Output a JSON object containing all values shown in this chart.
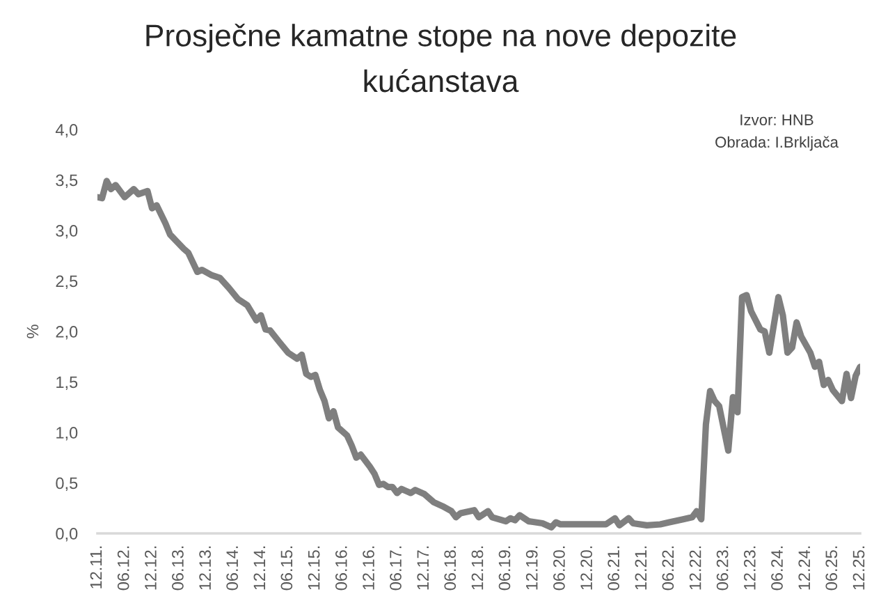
{
  "chart_data": {
    "type": "line",
    "title": "Prosječne kamatne stope na nove depozite\nkućanstava",
    "ylabel": "%",
    "annotations": [
      "Izvor: HNB",
      "Obrada: I.Brkljača"
    ],
    "x": [
      "2011-12",
      "2012-01",
      "2012-02",
      "2012-03",
      "2012-04",
      "2012-06",
      "2012-08",
      "2012-09",
      "2012-11",
      "2012-12",
      "2013-01",
      "2013-03",
      "2013-04",
      "2013-07",
      "2013-08",
      "2013-10",
      "2013-11",
      "2014-01",
      "2014-03",
      "2014-05",
      "2014-07",
      "2014-09",
      "2014-11",
      "2014-12",
      "2015-01",
      "2015-02",
      "2015-04",
      "2015-06",
      "2015-08",
      "2015-09",
      "2015-10",
      "2015-11",
      "2015-12",
      "2016-01",
      "2016-02",
      "2016-03",
      "2016-04",
      "2016-05",
      "2016-07",
      "2016-08",
      "2016-09",
      "2016-10",
      "2016-12",
      "2017-01",
      "2017-02",
      "2017-03",
      "2017-04",
      "2017-05",
      "2017-06",
      "2017-07",
      "2017-08",
      "2017-09",
      "2017-10",
      "2017-12",
      "2018-02",
      "2018-04",
      "2018-06",
      "2018-07",
      "2018-08",
      "2018-11",
      "2018-12",
      "2019-02",
      "2019-03",
      "2019-06",
      "2019-07",
      "2019-08",
      "2019-09",
      "2019-11",
      "2020-02",
      "2020-04",
      "2020-05",
      "2020-06",
      "2020-10",
      "2021-04",
      "2021-06",
      "2021-07",
      "2021-09",
      "2021-10",
      "2022-01",
      "2022-04",
      "2022-06",
      "2022-09",
      "2022-11",
      "2022-12",
      "2023-01",
      "2023-02",
      "2023-03",
      "2023-04",
      "2023-05",
      "2023-07",
      "2023-08",
      "2023-09",
      "2023-10",
      "2023-11",
      "2023-12",
      "2024-02",
      "2024-03",
      "2024-04",
      "2024-06",
      "2024-07",
      "2024-08",
      "2024-09",
      "2024-10",
      "2024-11",
      "2025-01",
      "2025-02",
      "2025-03",
      "2025-04",
      "2025-05",
      "2025-06",
      "2025-08",
      "2025-09",
      "2025-10",
      "2025-11",
      "2025-12"
    ],
    "series": [
      {
        "color": "#7f7f7f",
        "values": [
          3.33,
          3.32,
          3.49,
          3.41,
          3.45,
          3.33,
          3.41,
          3.36,
          3.39,
          3.22,
          3.25,
          3.07,
          2.96,
          2.82,
          2.78,
          2.59,
          2.61,
          2.56,
          2.53,
          2.43,
          2.32,
          2.26,
          2.11,
          2.16,
          2.02,
          2.01,
          1.9,
          1.79,
          1.73,
          1.77,
          1.58,
          1.55,
          1.57,
          1.42,
          1.31,
          1.14,
          1.21,
          1.05,
          0.97,
          0.87,
          0.75,
          0.78,
          0.66,
          0.59,
          0.48,
          0.49,
          0.46,
          0.46,
          0.4,
          0.44,
          0.42,
          0.4,
          0.43,
          0.39,
          0.31,
          0.27,
          0.22,
          0.16,
          0.2,
          0.23,
          0.16,
          0.22,
          0.16,
          0.12,
          0.15,
          0.13,
          0.18,
          0.12,
          0.1,
          0.06,
          0.11,
          0.09,
          0.09,
          0.09,
          0.15,
          0.08,
          0.15,
          0.1,
          0.08,
          0.09,
          0.11,
          0.14,
          0.16,
          0.22,
          0.14,
          1.08,
          1.41,
          1.31,
          1.26,
          0.82,
          1.35,
          1.2,
          2.34,
          2.36,
          2.2,
          2.02,
          2.0,
          1.79,
          2.34,
          2.16,
          1.79,
          1.84,
          2.09,
          1.95,
          1.79,
          1.65,
          1.7,
          1.47,
          1.52,
          1.42,
          1.31,
          1.58,
          1.34,
          1.56,
          1.65
        ]
      }
    ],
    "xlim": [
      "2011-12",
      "2025-12"
    ],
    "xticks": [
      {
        "value": "2011-12",
        "label": "12.11."
      },
      {
        "value": "2012-06",
        "label": "06.12."
      },
      {
        "value": "2012-12",
        "label": "12.12."
      },
      {
        "value": "2013-06",
        "label": "06.13."
      },
      {
        "value": "2013-12",
        "label": "12.13."
      },
      {
        "value": "2014-06",
        "label": "06.14."
      },
      {
        "value": "2014-12",
        "label": "12.14."
      },
      {
        "value": "2015-06",
        "label": "06.15."
      },
      {
        "value": "2015-12",
        "label": "12.15."
      },
      {
        "value": "2016-06",
        "label": "06.16."
      },
      {
        "value": "2016-12",
        "label": "12.16."
      },
      {
        "value": "2017-06",
        "label": "06.17."
      },
      {
        "value": "2017-12",
        "label": "12.17."
      },
      {
        "value": "2018-06",
        "label": "06.18."
      },
      {
        "value": "2018-12",
        "label": "12.18."
      },
      {
        "value": "2019-06",
        "label": "06.19."
      },
      {
        "value": "2019-12",
        "label": "12.19."
      },
      {
        "value": "2020-06",
        "label": "06.20."
      },
      {
        "value": "2020-12",
        "label": "12.20."
      },
      {
        "value": "2021-06",
        "label": "06.21."
      },
      {
        "value": "2021-12",
        "label": "12.21."
      },
      {
        "value": "2022-06",
        "label": "06.22."
      },
      {
        "value": "2022-12",
        "label": "12.22."
      },
      {
        "value": "2023-06",
        "label": "06.23."
      },
      {
        "value": "2023-12",
        "label": "12.23."
      },
      {
        "value": "2024-06",
        "label": "06.24."
      },
      {
        "value": "2024-12",
        "label": "12.24."
      },
      {
        "value": "2025-06",
        "label": "06.25."
      },
      {
        "value": "2025-12",
        "label": "12.25."
      }
    ],
    "ylim": [
      0,
      4
    ],
    "yticks": [
      {
        "value": 0,
        "label": "0,0"
      },
      {
        "value": 0.5,
        "label": "0,5"
      },
      {
        "value": 1,
        "label": "1,0"
      },
      {
        "value": 1.5,
        "label": "1,5"
      },
      {
        "value": 2,
        "label": "2,0"
      },
      {
        "value": 2.5,
        "label": "2,5"
      },
      {
        "value": 3,
        "label": "3,0"
      },
      {
        "value": 3.5,
        "label": "3,5"
      },
      {
        "value": 4,
        "label": "4,0"
      }
    ],
    "grid": false
  }
}
